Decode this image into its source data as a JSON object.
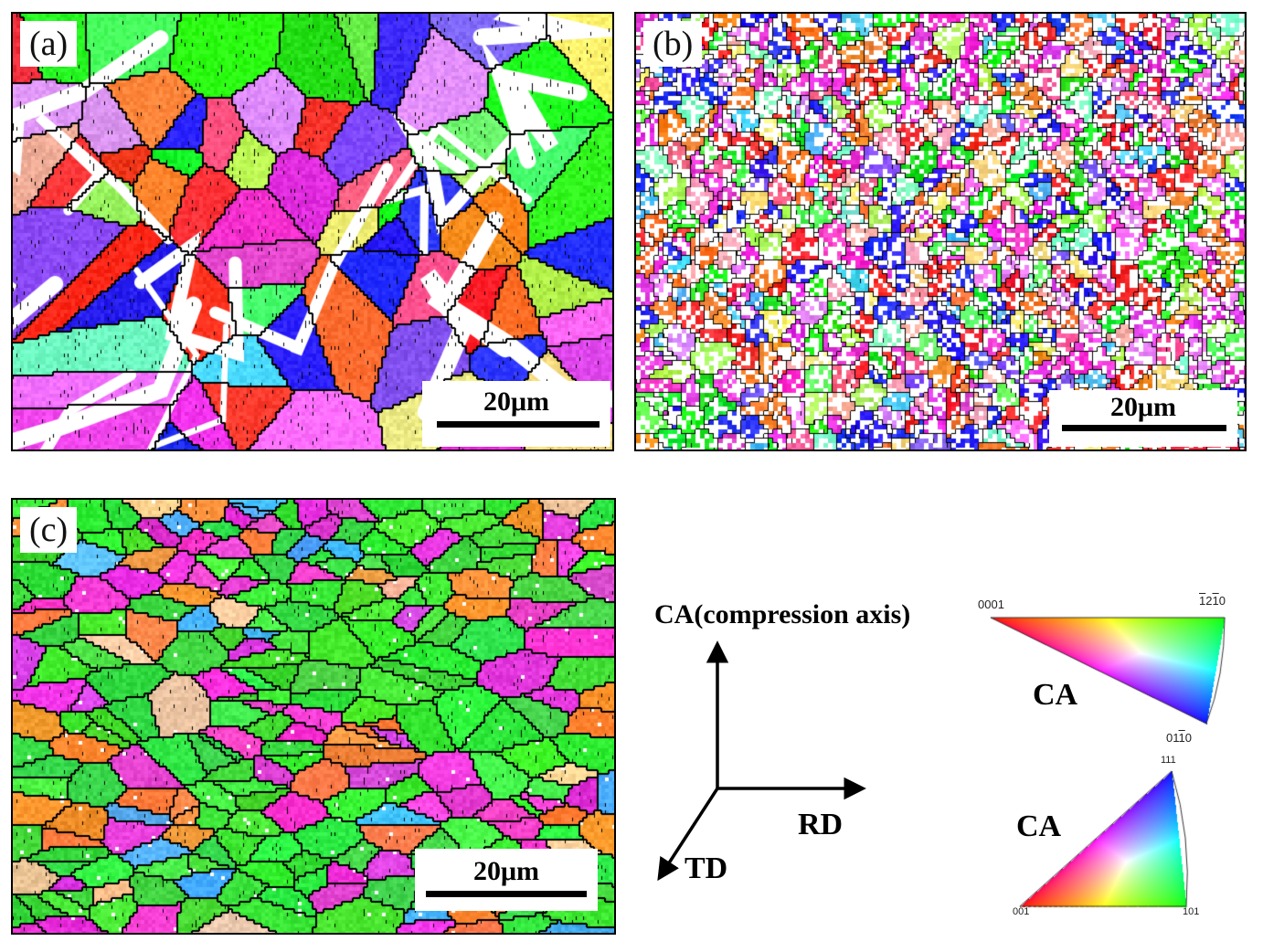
{
  "panels": [
    {
      "id": "a",
      "label": "(a)",
      "scale_label": "20μm"
    },
    {
      "id": "b",
      "label": "(b)",
      "scale_label": "20μm"
    },
    {
      "id": "c",
      "label": "(c)",
      "scale_label": "20μm"
    }
  ],
  "axes": {
    "ca_label": "CA(compression axis)",
    "rd_label": "RD",
    "td_label": "TD"
  },
  "hcp_triangle": {
    "label": "CA",
    "corner_0001": "0001",
    "corner_1210_parts": [
      "1",
      "2",
      "1",
      "0"
    ],
    "corner_0110_parts": [
      "01",
      "1",
      "0"
    ]
  },
  "cubic_triangle": {
    "label": "CA",
    "corner_001": "001",
    "corner_101": "101",
    "corner_111": "111"
  },
  "colors": {
    "red": "#ff2a2a",
    "green": "#22ee22",
    "blue": "#2a2aff",
    "magenta": "#ee33dd",
    "orange": "#ff7f2a",
    "background": "#ffffff",
    "line": "#000000"
  }
}
